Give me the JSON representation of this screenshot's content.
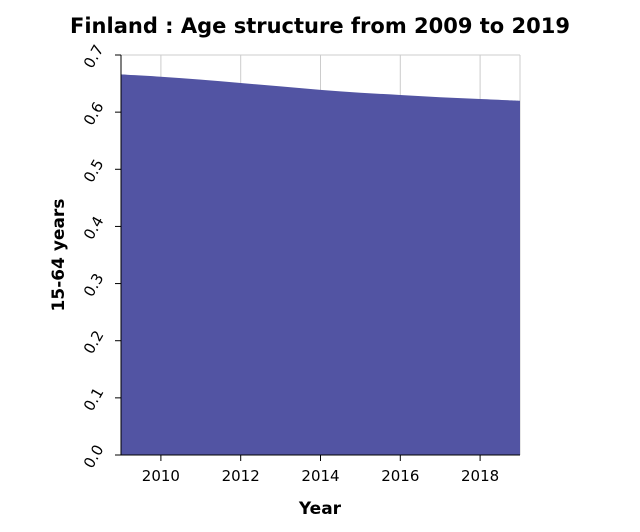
{
  "chart_data": {
    "type": "area",
    "title": "Finland : Age structure from 2009 to 2019",
    "xlabel": "Year",
    "ylabel": "15-64 years",
    "xlim": [
      2009,
      2019
    ],
    "ylim": [
      0.0,
      0.7
    ],
    "x_ticks": [
      "2010",
      "2012",
      "2014",
      "2016",
      "2018"
    ],
    "y_ticks": [
      "0.0",
      "0.1",
      "0.2",
      "0.3",
      "0.4",
      "0.5",
      "0.6",
      "0.7"
    ],
    "grid": true,
    "legend": "none",
    "x": [
      2009,
      2010,
      2011,
      2012,
      2013,
      2014,
      2015,
      2016,
      2017,
      2018,
      2019
    ],
    "series": [
      {
        "values": [
          0.666,
          0.662,
          0.657,
          0.651,
          0.645,
          0.639,
          0.634,
          0.63,
          0.626,
          0.623,
          0.62
        ],
        "color": "#5254a3"
      }
    ]
  }
}
